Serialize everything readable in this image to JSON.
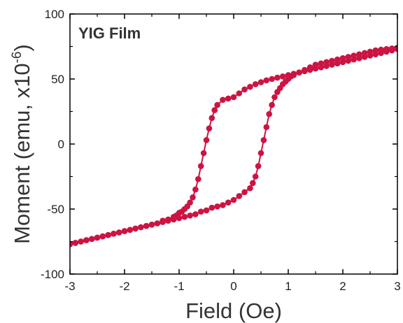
{
  "chart_data": {
    "type": "line",
    "title": "",
    "annotation": "YIG Film",
    "xlabel": "Field (Oe)",
    "ylabel": "Moment (emu, x10",
    "ylabel_sup": "-6",
    "ylabel_end": ")",
    "xlim": [
      -3,
      3
    ],
    "ylim": [
      -100,
      100
    ],
    "x_ticks": [
      -3,
      -2,
      -1,
      0,
      1,
      2,
      3
    ],
    "y_ticks": [
      -100,
      -50,
      0,
      50,
      100
    ],
    "x_tick_labels": [
      "-3",
      "-2",
      "-1",
      "0",
      "1",
      "2",
      "3"
    ],
    "y_tick_labels": [
      "-100",
      "-50",
      "0",
      "50",
      "100"
    ],
    "grid": false,
    "legend": false,
    "colors": {
      "series": "#cc1442",
      "axis": "#000000"
    },
    "series": [
      {
        "x": [
          3.0,
          2.9,
          2.8,
          2.7,
          2.6,
          2.5,
          2.4,
          2.3,
          2.2,
          2.1,
          2.0,
          1.9,
          1.8,
          1.7,
          1.6,
          1.5,
          1.4,
          1.3,
          1.2,
          1.1,
          1.0,
          0.9,
          0.8,
          0.7,
          0.6,
          0.5,
          0.4,
          0.3,
          0.2,
          0.1,
          0.0,
          -0.1,
          -0.2,
          -0.3,
          -0.35,
          -0.4,
          -0.45,
          -0.5,
          -0.55,
          -0.6,
          -0.65,
          -0.7,
          -0.75,
          -0.8,
          -0.85,
          -0.9,
          -0.95,
          -1.0,
          -1.05,
          -1.1,
          -1.2,
          -1.3,
          -1.4,
          -1.5,
          -1.6,
          -1.7,
          -1.8,
          -1.9,
          -2.0,
          -2.1,
          -2.2,
          -2.3,
          -2.4,
          -2.5,
          -2.6,
          -2.7,
          -2.8,
          -2.9,
          -3.0
        ],
        "y": [
          73,
          72,
          71,
          70,
          69,
          68,
          67,
          66,
          65,
          64,
          63,
          62,
          61,
          60,
          59,
          58,
          57,
          56,
          55,
          54,
          53,
          52,
          51,
          50,
          49,
          47.5,
          46,
          44,
          42,
          39,
          36,
          35,
          34,
          30,
          26,
          20,
          12,
          3,
          -7,
          -17,
          -27,
          -35,
          -41,
          -45,
          -48,
          -50,
          -52,
          -53,
          -55,
          -56,
          -58,
          -59,
          -61,
          -62,
          -63,
          -64,
          -65,
          -66,
          -67,
          -68,
          -69,
          -70,
          -71,
          -72,
          -73,
          -74,
          -75,
          -76,
          -77
        ]
      },
      {
        "x": [
          -3.0,
          -2.9,
          -2.8,
          -2.7,
          -2.6,
          -2.5,
          -2.4,
          -2.3,
          -2.2,
          -2.1,
          -2.0,
          -1.9,
          -1.8,
          -1.7,
          -1.6,
          -1.5,
          -1.4,
          -1.3,
          -1.2,
          -1.1,
          -1.0,
          -0.9,
          -0.8,
          -0.7,
          -0.6,
          -0.5,
          -0.4,
          -0.3,
          -0.2,
          -0.1,
          0.0,
          0.1,
          0.2,
          0.3,
          0.35,
          0.4,
          0.45,
          0.5,
          0.55,
          0.6,
          0.65,
          0.7,
          0.75,
          0.8,
          0.85,
          0.9,
          0.95,
          1.0,
          1.05,
          1.1,
          1.2,
          1.3,
          1.4,
          1.5,
          1.6,
          1.7,
          1.8,
          1.9,
          2.0,
          2.1,
          2.2,
          2.3,
          2.4,
          2.5,
          2.6,
          2.7,
          2.8,
          2.9,
          3.0
        ],
        "y": [
          -77,
          -76,
          -75,
          -74,
          -73,
          -72,
          -71,
          -70,
          -69,
          -68,
          -67,
          -66,
          -65,
          -64,
          -63,
          -62,
          -61,
          -60,
          -59,
          -58,
          -57,
          -56,
          -55,
          -54,
          -52,
          -51,
          -49,
          -48,
          -47,
          -45,
          -43,
          -40,
          -37,
          -34,
          -30,
          -25,
          -17,
          -7,
          3,
          13,
          23,
          30,
          36,
          40,
          43,
          46,
          48,
          50,
          52,
          53,
          55,
          57,
          59,
          61,
          62,
          63,
          64,
          65,
          66,
          67,
          68,
          69,
          70,
          71,
          72,
          72.5,
          73,
          73.5,
          74
        ]
      }
    ]
  }
}
